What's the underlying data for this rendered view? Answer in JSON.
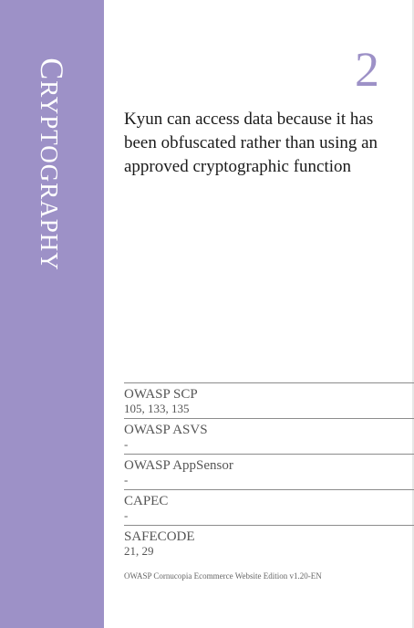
{
  "colors": {
    "suit_band": "#9d91c7",
    "card_number": "#9d91c7",
    "suit_title": "#ffffff"
  },
  "card": {
    "suit_title_first": "C",
    "suit_title_rest": "RYPTOGRAPHY",
    "number": "2",
    "threat": "Kyun can access data because it has been obfuscated rather than using an approved cryptographic function"
  },
  "mappings": [
    {
      "label": "OWASP SCP",
      "value": "105, 133, 135"
    },
    {
      "label": "OWASP ASVS",
      "value": "-"
    },
    {
      "label": "OWASP AppSensor",
      "value": "-"
    },
    {
      "label": "CAPEC",
      "value": "-"
    },
    {
      "label_prefix": "SAFEC",
      "label_sc": "ODE",
      "value": "21, 29"
    }
  ],
  "edition": "OWASP Cornucopia Ecommerce Website Edition v1.20-EN"
}
